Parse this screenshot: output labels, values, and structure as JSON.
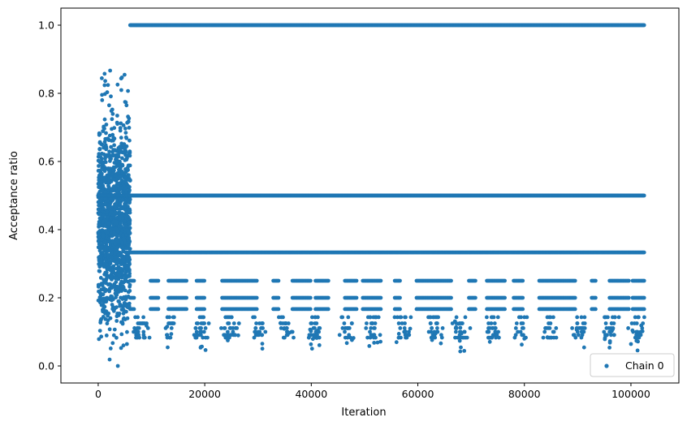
{
  "chart_data": {
    "type": "scatter",
    "xlabel": "Iteration",
    "ylabel": "Acceptance ratio",
    "xlim": [
      -7000,
      109000
    ],
    "ylim": [
      -0.05,
      1.05
    ],
    "x_ticks": [
      0,
      20000,
      40000,
      60000,
      80000,
      100000
    ],
    "x_tick_labels": [
      "0",
      "20000",
      "40000",
      "60000",
      "80000",
      "100000"
    ],
    "y_ticks": [
      0.0,
      0.2,
      0.4,
      0.6,
      0.8,
      1.0
    ],
    "y_tick_labels": [
      "0.0",
      "0.2",
      "0.4",
      "0.6",
      "0.8",
      "1.0"
    ],
    "grid": false,
    "legend_position": "bottom-right",
    "series": [
      {
        "name": "Chain 0",
        "color": "#1f77b4",
        "marker": "circle",
        "description_segments": [
          {
            "x_range": [
              0,
              6000
            ],
            "y_range": [
              0.0,
              0.88
            ],
            "note": "dense burn-in scatter"
          },
          {
            "x_range": [
              6000,
              102500
            ],
            "y": 1.0
          },
          {
            "x_range": [
              0,
              102500
            ],
            "y": 0.5
          },
          {
            "x_range": [
              6000,
              102500
            ],
            "y": 0.333
          },
          {
            "x_range": [
              6000,
              102500
            ],
            "y": 0.25
          },
          {
            "x_range": [
              6000,
              102500
            ],
            "y": 0.2
          },
          {
            "x_range": [
              6000,
              102500
            ],
            "y": 0.167
          }
        ]
      }
    ]
  }
}
